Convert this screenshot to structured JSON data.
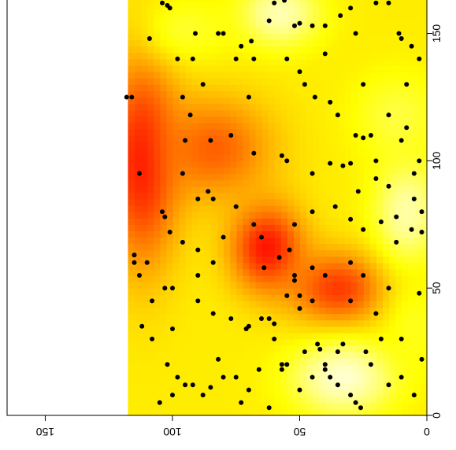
{
  "chart_data": {
    "type": "heatmap",
    "orientation": "rotated-180",
    "title": "",
    "xlabel": "",
    "ylabel": "",
    "x_axis": {
      "ticks": [
        0,
        50,
        100,
        150
      ],
      "labels": [
        "0",
        "50",
        "100",
        "150"
      ],
      "lim": [
        0,
        165
      ]
    },
    "y_axis": {
      "ticks": [
        0,
        50,
        100,
        150
      ],
      "labels": [
        "0",
        "50",
        "100",
        "150"
      ],
      "lim": [
        0,
        165
      ]
    },
    "raster_extent": {
      "x": [
        0,
        117
      ],
      "y": [
        0,
        163
      ]
    },
    "palette": [
      "#FF0000",
      "#FF4000",
      "#FF8000",
      "#FFBF00",
      "#FFFF00",
      "#FFFF80",
      "#FFFFE0"
    ],
    "point_color": "#000000",
    "grid": false,
    "legend": "none",
    "hotspots": [
      {
        "x": 63,
        "y": 66,
        "level": 0.05,
        "sx": 10,
        "sy": 12
      },
      {
        "x": 35,
        "y": 50,
        "level": 0.15,
        "sx": 13,
        "sy": 10
      },
      {
        "x": 112,
        "y": 100,
        "level": 0.05,
        "sx": 10,
        "sy": 28
      },
      {
        "x": 84,
        "y": 105,
        "level": 0.25,
        "sx": 16,
        "sy": 14
      },
      {
        "x": 33,
        "y": 15,
        "level": 0.97,
        "sx": 14,
        "sy": 10
      },
      {
        "x": 58,
        "y": 158,
        "level": 0.92,
        "sx": 11,
        "sy": 9
      },
      {
        "x": 8,
        "y": 80,
        "level": 0.9,
        "sx": 9,
        "sy": 14
      },
      {
        "x": 12,
        "y": 118,
        "level": 0.75,
        "sx": 12,
        "sy": 12
      },
      {
        "x": 95,
        "y": 152,
        "level": 0.72,
        "sx": 12,
        "sy": 9
      },
      {
        "x": 5,
        "y": 35,
        "level": 0.7,
        "sx": 8,
        "sy": 12
      }
    ],
    "points": [
      [
        104,
        162
      ],
      [
        102,
        161
      ],
      [
        101,
        160
      ],
      [
        91,
        150
      ],
      [
        82,
        150
      ],
      [
        80,
        150
      ],
      [
        73,
        145
      ],
      [
        69,
        147
      ],
      [
        60,
        162
      ],
      [
        56,
        163
      ],
      [
        52,
        153
      ],
      [
        50,
        154
      ],
      [
        45,
        153
      ],
      [
        40,
        153
      ],
      [
        34,
        157
      ],
      [
        30,
        160
      ],
      [
        20,
        162
      ],
      [
        15,
        162
      ],
      [
        11,
        150
      ],
      [
        10,
        148
      ],
      [
        6,
        145
      ],
      [
        3,
        140
      ],
      [
        109,
        148
      ],
      [
        98,
        140
      ],
      [
        92,
        140
      ],
      [
        68,
        140
      ],
      [
        50,
        135
      ],
      [
        48,
        130
      ],
      [
        44,
        125
      ],
      [
        38,
        123
      ],
      [
        35,
        118
      ],
      [
        28,
        110
      ],
      [
        25,
        109
      ],
      [
        22,
        110
      ],
      [
        15,
        118
      ],
      [
        8,
        113
      ],
      [
        3,
        100
      ],
      [
        118,
        125
      ],
      [
        116,
        125
      ],
      [
        96,
        125
      ],
      [
        93,
        118
      ],
      [
        85,
        108
      ],
      [
        77,
        110
      ],
      [
        68,
        103
      ],
      [
        57,
        102
      ],
      [
        55,
        100
      ],
      [
        45,
        95
      ],
      [
        38,
        99
      ],
      [
        33,
        98
      ],
      [
        30,
        99
      ],
      [
        20,
        93
      ],
      [
        15,
        90
      ],
      [
        5,
        85
      ],
      [
        2,
        80
      ],
      [
        113,
        95
      ],
      [
        96,
        95
      ],
      [
        90,
        85
      ],
      [
        84,
        85
      ],
      [
        75,
        82
      ],
      [
        68,
        75
      ],
      [
        65,
        70
      ],
      [
        52,
        75
      ],
      [
        45,
        80
      ],
      [
        36,
        82
      ],
      [
        30,
        77
      ],
      [
        25,
        73
      ],
      [
        18,
        76
      ],
      [
        12,
        78
      ],
      [
        6,
        73
      ],
      [
        2,
        72
      ],
      [
        104,
        80
      ],
      [
        103,
        78
      ],
      [
        101,
        72
      ],
      [
        96,
        68
      ],
      [
        90,
        65
      ],
      [
        80,
        70
      ],
      [
        54,
        65
      ],
      [
        52,
        55
      ],
      [
        52,
        53
      ],
      [
        45,
        58
      ],
      [
        40,
        55
      ],
      [
        30,
        60
      ],
      [
        25,
        55
      ],
      [
        15,
        50
      ],
      [
        3,
        48
      ],
      [
        115,
        63
      ],
      [
        115,
        60
      ],
      [
        113,
        55
      ],
      [
        103,
        50
      ],
      [
        100,
        50
      ],
      [
        90,
        45
      ],
      [
        84,
        40
      ],
      [
        77,
        38
      ],
      [
        70,
        35
      ],
      [
        62,
        38
      ],
      [
        60,
        30
      ],
      [
        57,
        20
      ],
      [
        48,
        25
      ],
      [
        43,
        28
      ],
      [
        40,
        20
      ],
      [
        35,
        25
      ],
      [
        33,
        28
      ],
      [
        24,
        25
      ],
      [
        18,
        30
      ],
      [
        10,
        30
      ],
      [
        2,
        22
      ],
      [
        112,
        35
      ],
      [
        108,
        30
      ],
      [
        102,
        20
      ],
      [
        98,
        15
      ],
      [
        92,
        12
      ],
      [
        85,
        11
      ],
      [
        80,
        15
      ],
      [
        75,
        15
      ],
      [
        73,
        5
      ],
      [
        70,
        10
      ],
      [
        66,
        18
      ],
      [
        62,
        3
      ],
      [
        57,
        18
      ],
      [
        55,
        20
      ],
      [
        50,
        10
      ],
      [
        45,
        15
      ],
      [
        40,
        18
      ],
      [
        38,
        15
      ],
      [
        30,
        8
      ],
      [
        28,
        5
      ],
      [
        26,
        3
      ],
      [
        15,
        12
      ],
      [
        10,
        15
      ],
      [
        5,
        8
      ],
      [
        105,
        5
      ],
      [
        100,
        8
      ],
      [
        95,
        12
      ],
      [
        88,
        8
      ],
      [
        82,
        22
      ],
      [
        65,
        38
      ],
      [
        60,
        36
      ],
      [
        50,
        42
      ],
      [
        45,
        45
      ],
      [
        20,
        40
      ],
      [
        110,
        60
      ],
      [
        108,
        45
      ],
      [
        100,
        34
      ],
      [
        90,
        55
      ],
      [
        84,
        60
      ],
      [
        71,
        34
      ],
      [
        64,
        58
      ],
      [
        58,
        62
      ],
      [
        55,
        47
      ],
      [
        50,
        47
      ],
      [
        42,
        26
      ],
      [
        30,
        45
      ],
      [
        27,
        88
      ],
      [
        20,
        100
      ],
      [
        10,
        108
      ],
      [
        95,
        108
      ],
      [
        86,
        88
      ],
      [
        88,
        130
      ],
      [
        70,
        125
      ],
      [
        55,
        140
      ],
      [
        40,
        142
      ],
      [
        28,
        150
      ],
      [
        25,
        130
      ],
      [
        8,
        130
      ],
      [
        5,
        95
      ],
      [
        12,
        68
      ],
      [
        22,
        20
      ],
      [
        35,
        12
      ],
      [
        75,
        140
      ],
      [
        62,
        155
      ]
    ]
  }
}
